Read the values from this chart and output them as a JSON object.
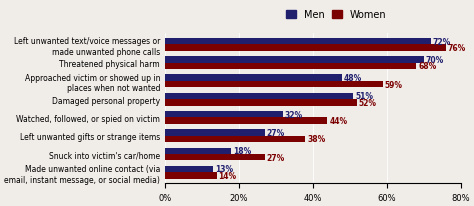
{
  "categories": [
    "Left unwanted text/voice messages or\nmade unwanted phone calls",
    "Threatened physical harm",
    "Approached victim or showed up in\nplaces when not wanted",
    "Damaged personal property",
    "Watched, followed, or spied on victim",
    "Left unwanted gifts or strange items",
    "Snuck into victim's car/home",
    "Made unwanted online contact (via\nemail, instant message, or social media)"
  ],
  "men_values": [
    72,
    70,
    48,
    51,
    32,
    27,
    18,
    13
  ],
  "women_values": [
    76,
    68,
    59,
    52,
    44,
    38,
    27,
    14
  ],
  "men_color": "#1F1F6E",
  "women_color": "#7B0000",
  "legend_men": "Men",
  "legend_women": "Women",
  "xlim": [
    0,
    80
  ],
  "xticks": [
    0,
    20,
    40,
    60,
    80
  ],
  "xtick_labels": [
    "0%",
    "20%",
    "40%",
    "60%",
    "80%"
  ],
  "bar_height": 0.35,
  "label_fontsize": 5.5,
  "tick_fontsize": 6,
  "legend_fontsize": 7,
  "bg_color": "#f0ece8"
}
